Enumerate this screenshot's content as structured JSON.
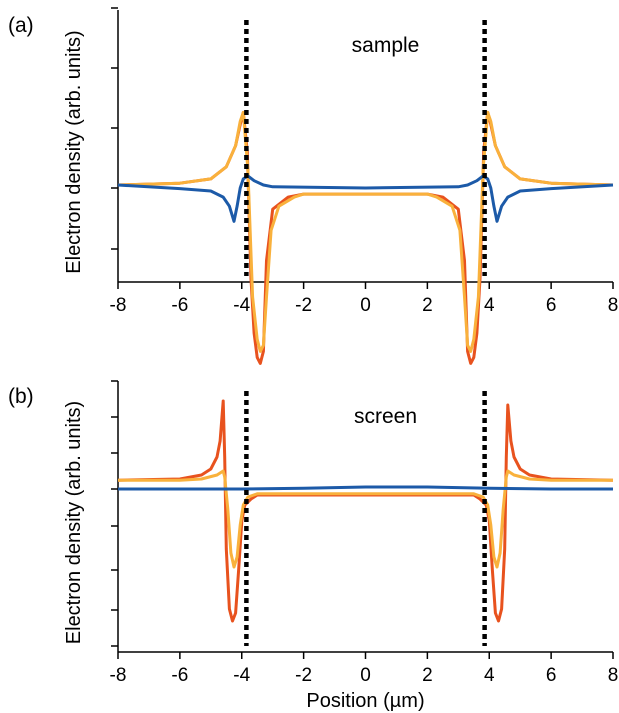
{
  "chart_data": [
    {
      "type": "line",
      "panel_label": "(a)",
      "title": "sample",
      "ylabel": "Electron density (arb. units)",
      "xlabel": "",
      "xlim": [
        -8,
        8
      ],
      "xticks": [
        "-8",
        "-6",
        "-4",
        "-2",
        "0",
        "2",
        "4",
        "6",
        "8"
      ],
      "y_tick_labels_shown": false,
      "vlines": [
        -3.85,
        3.85
      ],
      "series": [
        {
          "color": "#E8521E",
          "points": [
            [
              -8,
              0.05
            ],
            [
              -6,
              0.08
            ],
            [
              -5,
              0.15
            ],
            [
              -4.5,
              0.35
            ],
            [
              -4.2,
              0.7
            ],
            [
              -4.05,
              1.05
            ],
            [
              -3.95,
              1.25
            ],
            [
              -3.82,
              0.6
            ],
            [
              -3.7,
              -1.5
            ],
            [
              -3.6,
              -2.4
            ],
            [
              -3.5,
              -2.8
            ],
            [
              -3.4,
              -2.9
            ],
            [
              -3.3,
              -2.7
            ],
            [
              -3.2,
              -1.2
            ],
            [
              -3.0,
              -0.35
            ],
            [
              -2.5,
              -0.15
            ],
            [
              -2,
              -0.1
            ],
            [
              0,
              -0.1
            ],
            [
              2,
              -0.1
            ],
            [
              2.5,
              -0.15
            ],
            [
              3.0,
              -0.35
            ],
            [
              3.2,
              -1.2
            ],
            [
              3.3,
              -2.7
            ],
            [
              3.4,
              -2.9
            ],
            [
              3.5,
              -2.8
            ],
            [
              3.6,
              -2.4
            ],
            [
              3.7,
              -1.5
            ],
            [
              3.82,
              0.6
            ],
            [
              3.95,
              1.25
            ],
            [
              4.05,
              1.05
            ],
            [
              4.2,
              0.7
            ],
            [
              4.5,
              0.35
            ],
            [
              5,
              0.15
            ],
            [
              6,
              0.08
            ],
            [
              8,
              0.05
            ]
          ]
        },
        {
          "color": "#F9B13C",
          "points": [
            [
              -8,
              0.05
            ],
            [
              -6,
              0.08
            ],
            [
              -5,
              0.15
            ],
            [
              -4.5,
              0.35
            ],
            [
              -4.2,
              0.7
            ],
            [
              -4.05,
              1.1
            ],
            [
              -3.95,
              1.25
            ],
            [
              -3.8,
              0.3
            ],
            [
              -3.65,
              -1.8
            ],
            [
              -3.5,
              -2.5
            ],
            [
              -3.4,
              -2.7
            ],
            [
              -3.3,
              -2.6
            ],
            [
              -3.2,
              -1.8
            ],
            [
              -3.05,
              -0.7
            ],
            [
              -2.8,
              -0.3
            ],
            [
              -2.3,
              -0.15
            ],
            [
              -2,
              -0.1
            ],
            [
              0,
              -0.1
            ],
            [
              2,
              -0.1
            ],
            [
              2.3,
              -0.15
            ],
            [
              2.8,
              -0.3
            ],
            [
              3.05,
              -0.7
            ],
            [
              3.2,
              -1.8
            ],
            [
              3.3,
              -2.6
            ],
            [
              3.4,
              -2.7
            ],
            [
              3.5,
              -2.5
            ],
            [
              3.65,
              -1.8
            ],
            [
              3.8,
              0.3
            ],
            [
              3.95,
              1.25
            ],
            [
              4.05,
              1.1
            ],
            [
              4.2,
              0.7
            ],
            [
              4.5,
              0.35
            ],
            [
              5,
              0.15
            ],
            [
              6,
              0.08
            ],
            [
              8,
              0.05
            ]
          ]
        },
        {
          "color": "#1C5AA8",
          "points": [
            [
              -8,
              0.05
            ],
            [
              -6,
              -0.01
            ],
            [
              -5,
              -0.05
            ],
            [
              -4.6,
              -0.15
            ],
            [
              -4.4,
              -0.3
            ],
            [
              -4.25,
              -0.55
            ],
            [
              -4.15,
              -0.3
            ],
            [
              -4.05,
              0.0
            ],
            [
              -3.95,
              0.15
            ],
            [
              -3.8,
              0.2
            ],
            [
              -3.6,
              0.12
            ],
            [
              -3.3,
              0.05
            ],
            [
              -3,
              0.02
            ],
            [
              0,
              0.0
            ],
            [
              3,
              0.02
            ],
            [
              3.3,
              0.05
            ],
            [
              3.6,
              0.12
            ],
            [
              3.8,
              0.2
            ],
            [
              3.95,
              0.15
            ],
            [
              4.05,
              0.0
            ],
            [
              4.15,
              -0.3
            ],
            [
              4.25,
              -0.55
            ],
            [
              4.4,
              -0.3
            ],
            [
              4.6,
              -0.15
            ],
            [
              5,
              -0.05
            ],
            [
              6,
              -0.01
            ],
            [
              8,
              0.05
            ]
          ]
        }
      ]
    },
    {
      "type": "line",
      "panel_label": "(b)",
      "title": "screen",
      "ylabel": "Electron density (arb. units)",
      "xlabel": "Position (µm)",
      "xlim": [
        -8,
        8
      ],
      "xticks": [
        "-8",
        "-6",
        "-4",
        "-2",
        "0",
        "2",
        "4",
        "6",
        "8"
      ],
      "y_tick_labels_shown": false,
      "vlines": [
        -3.85,
        3.85
      ],
      "series": [
        {
          "color": "#E8521E",
          "points": [
            [
              -8,
              0.22
            ],
            [
              -6,
              0.25
            ],
            [
              -5.3,
              0.35
            ],
            [
              -5.0,
              0.5
            ],
            [
              -4.8,
              0.8
            ],
            [
              -4.7,
              1.2
            ],
            [
              -4.6,
              2.2
            ],
            [
              -4.55,
              0.8
            ],
            [
              -4.5,
              -1.5
            ],
            [
              -4.4,
              -3.0
            ],
            [
              -4.3,
              -3.3
            ],
            [
              -4.2,
              -3.1
            ],
            [
              -4.1,
              -2.0
            ],
            [
              -4.0,
              -0.8
            ],
            [
              -3.9,
              -0.4
            ],
            [
              -3.7,
              -0.25
            ],
            [
              -3.5,
              -0.15
            ],
            [
              -3,
              -0.15
            ],
            [
              0,
              -0.15
            ],
            [
              3,
              -0.15
            ],
            [
              3.5,
              -0.15
            ],
            [
              3.7,
              -0.25
            ],
            [
              3.9,
              -0.4
            ],
            [
              4.0,
              -0.8
            ],
            [
              4.1,
              -2.0
            ],
            [
              4.2,
              -3.1
            ],
            [
              4.3,
              -3.3
            ],
            [
              4.4,
              -3.0
            ],
            [
              4.5,
              -1.5
            ],
            [
              4.55,
              0.8
            ],
            [
              4.6,
              2.1
            ],
            [
              4.7,
              1.2
            ],
            [
              4.8,
              0.8
            ],
            [
              5.0,
              0.5
            ],
            [
              5.3,
              0.35
            ],
            [
              6,
              0.25
            ],
            [
              8,
              0.22
            ]
          ]
        },
        {
          "color": "#F9B13C",
          "points": [
            [
              -8,
              0.22
            ],
            [
              -6,
              0.22
            ],
            [
              -5.3,
              0.25
            ],
            [
              -4.8,
              0.35
            ],
            [
              -4.6,
              0.45
            ],
            [
              -4.55,
              0.3
            ],
            [
              -4.45,
              -0.5
            ],
            [
              -4.35,
              -1.6
            ],
            [
              -4.25,
              -1.95
            ],
            [
              -4.15,
              -1.7
            ],
            [
              -4.05,
              -0.9
            ],
            [
              -3.95,
              -0.4
            ],
            [
              -3.8,
              -0.2
            ],
            [
              -3.5,
              -0.12
            ],
            [
              -3,
              -0.12
            ],
            [
              0,
              -0.12
            ],
            [
              3,
              -0.12
            ],
            [
              3.5,
              -0.12
            ],
            [
              3.8,
              -0.2
            ],
            [
              3.95,
              -0.4
            ],
            [
              4.05,
              -0.9
            ],
            [
              4.15,
              -1.7
            ],
            [
              4.25,
              -1.95
            ],
            [
              4.35,
              -1.6
            ],
            [
              4.45,
              -0.5
            ],
            [
              4.55,
              0.3
            ],
            [
              4.6,
              0.45
            ],
            [
              4.8,
              0.35
            ],
            [
              5.3,
              0.25
            ],
            [
              6,
              0.22
            ],
            [
              8,
              0.22
            ]
          ]
        },
        {
          "color": "#1C5AA8",
          "points": [
            [
              -8,
              0.0
            ],
            [
              -6,
              0.0
            ],
            [
              -4,
              0.0
            ],
            [
              -2,
              0.02
            ],
            [
              0,
              0.05
            ],
            [
              2,
              0.05
            ],
            [
              4,
              0.02
            ],
            [
              6,
              0.0
            ],
            [
              8,
              0.0
            ]
          ]
        }
      ]
    }
  ]
}
